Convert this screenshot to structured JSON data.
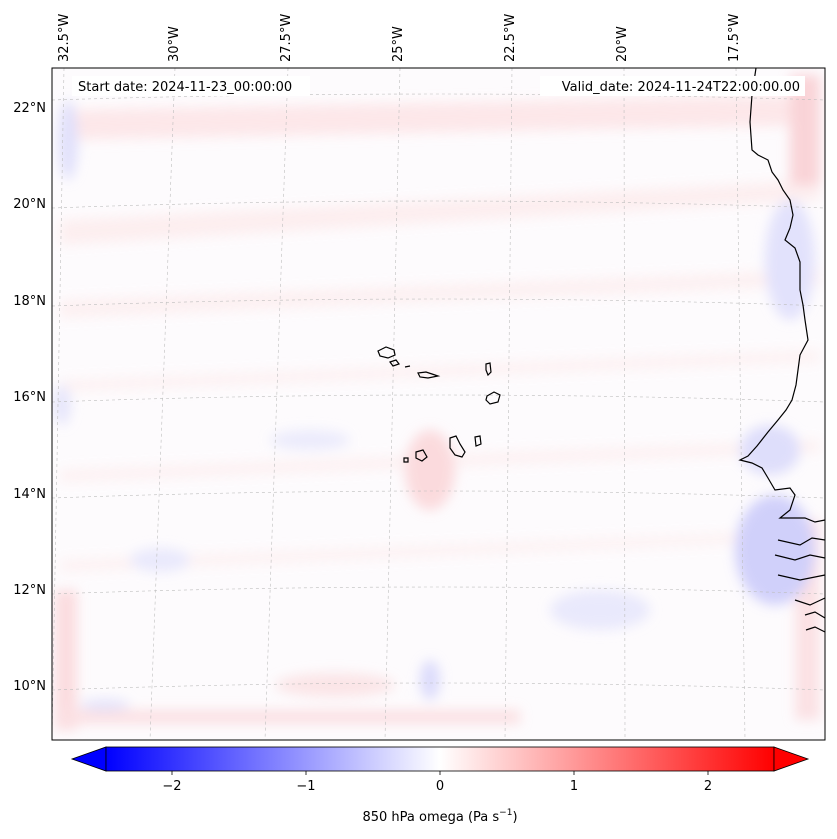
{
  "map": {
    "start_date_label": "Start date: 2024-11-23_00:00:00",
    "valid_date_label": "Valid_date: 2024-11-24T22:00:00.00",
    "lon_labels": [
      "32.5°W",
      "30°W",
      "27.5°W",
      "25°W",
      "22.5°W",
      "20°W",
      "17.5°W"
    ],
    "lat_labels": [
      "22°N",
      "20°N",
      "18°N",
      "16°N",
      "14°N",
      "12°N",
      "10°N"
    ],
    "colorbar": {
      "label_main": "850 hPa omega (Pa s",
      "label_exp": "−1",
      "label_close": ")",
      "ticks": [
        "−2",
        "−1",
        "0",
        "1",
        "2"
      ],
      "range": [
        -2.75,
        2.75
      ],
      "colormap": "bwr",
      "extend": "both"
    },
    "colors": {
      "negative": "#0000ff",
      "zero": "#ffffff",
      "positive": "#ff0000",
      "coastline": "#000000",
      "gridline": "#b0b0b0"
    }
  }
}
